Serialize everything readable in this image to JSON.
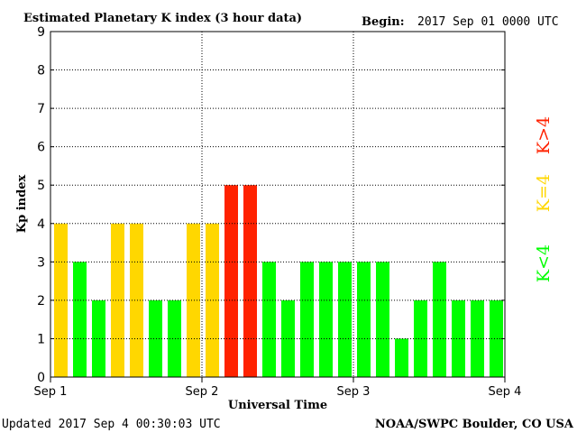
{
  "header": {
    "title": "Estimated Planetary K index (3 hour data)",
    "begin_label": "Begin:",
    "begin_value": "2017 Sep 01 0000 UTC"
  },
  "footer": {
    "updated": "Updated 2017 Sep  4 00:30:03 UTC",
    "credit": "NOAA/SWPC Boulder, CO USA"
  },
  "legend": {
    "above": "K>4",
    "equal": "K=4",
    "below": "K<4"
  },
  "colors": {
    "below": "#00ff00",
    "equal": "#ffd700",
    "above": "#ff2200",
    "legend_equal": "#ffd700"
  },
  "chart_data": {
    "type": "bar",
    "title": "Estimated Planetary K index (3 hour data)",
    "xlabel": "Universal Time",
    "ylabel": "Kp index",
    "ylim": [
      0,
      9
    ],
    "yticks": [
      0,
      1,
      2,
      3,
      4,
      5,
      6,
      7,
      8,
      9
    ],
    "xticks": [
      "Sep 1",
      "Sep 2",
      "Sep 3",
      "Sep 4"
    ],
    "bars_per_day": 8,
    "grid": "dotted",
    "values": [
      4,
      3,
      2,
      4,
      4,
      2,
      2,
      4,
      4,
      5,
      5,
      3,
      2,
      3,
      3,
      3,
      3,
      3,
      1,
      2,
      3,
      2,
      2,
      2
    ]
  }
}
